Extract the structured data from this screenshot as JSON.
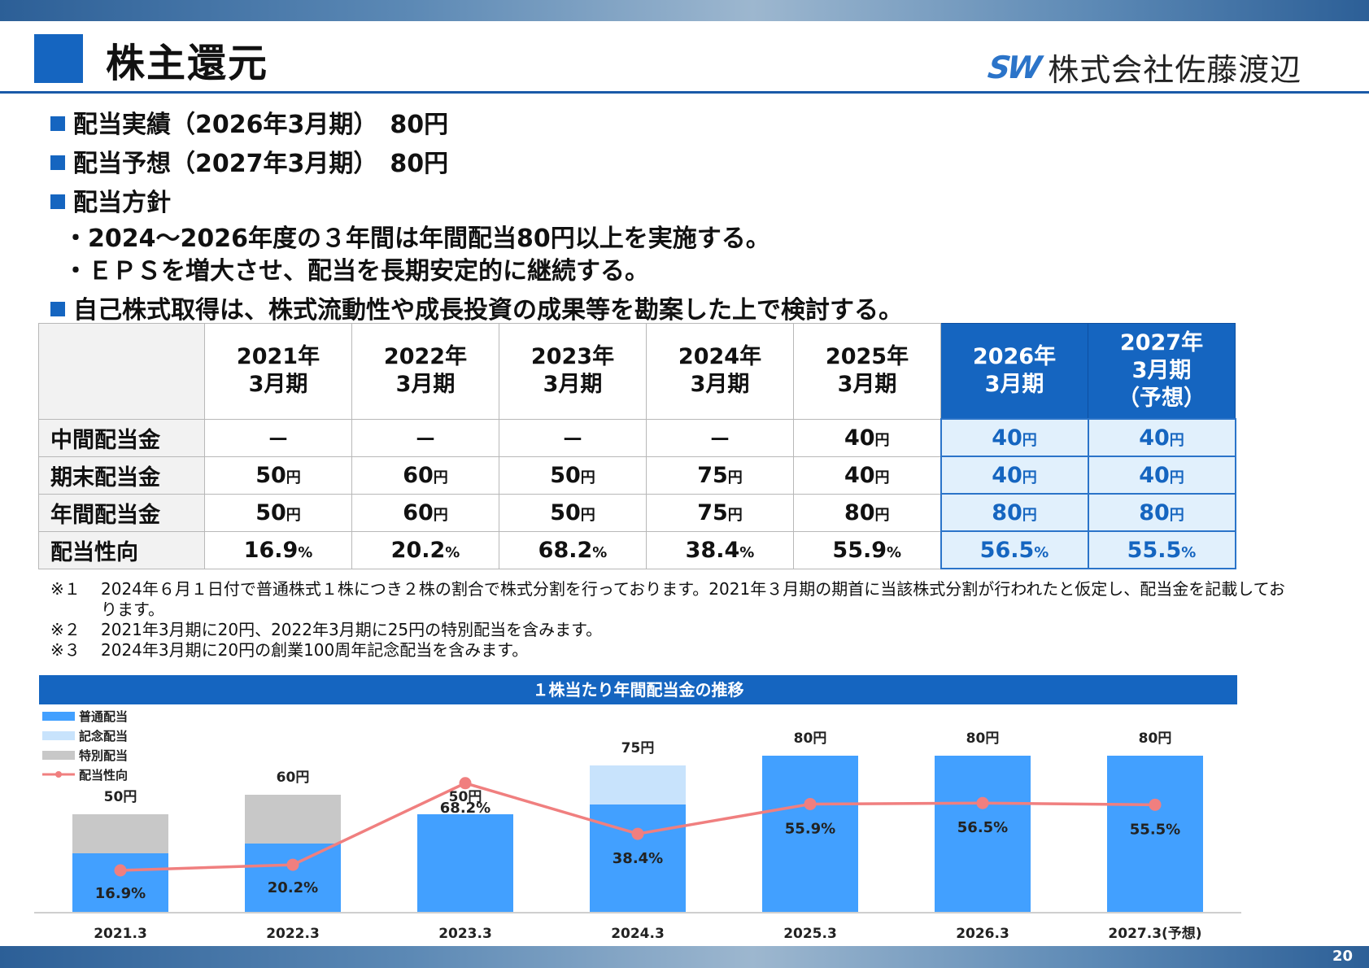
{
  "header": {
    "title": "株主還元",
    "company": "株式会社佐藤渡辺",
    "logo_mark": "SW"
  },
  "page_number": "20",
  "lines": [
    "配当実績（2026年3月期）　80円",
    "配当予想（2027年3月期）　80円",
    "配当方針",
    "・2024～2026年度の３年間は年間配当80円以上を実施する。",
    "・ＥＰＳを増大させ、配当を長期安定的に継続する。",
    "自己株式取得は、株式流動性や成長投資の成果等を勘案した上で検討する。"
  ],
  "table": {
    "columns": [
      [
        "2021年",
        "3月期"
      ],
      [
        "2022年",
        "3月期"
      ],
      [
        "2023年",
        "3月期"
      ],
      [
        "2024年",
        "3月期"
      ],
      [
        "2025年",
        "3月期"
      ],
      [
        "2026年",
        "3月期"
      ],
      [
        "2027年",
        "3月期",
        "（予想）"
      ]
    ],
    "rows": [
      {
        "label": "中間配当金",
        "cells": [
          [
            "－",
            ""
          ],
          [
            "－",
            ""
          ],
          [
            "－",
            ""
          ],
          [
            "－",
            ""
          ],
          [
            "40",
            "円"
          ],
          [
            "40",
            "円"
          ],
          [
            "40",
            "円"
          ]
        ]
      },
      {
        "label": "期末配当金",
        "cells": [
          [
            "50",
            "円"
          ],
          [
            "60",
            "円"
          ],
          [
            "50",
            "円"
          ],
          [
            "75",
            "円"
          ],
          [
            "40",
            "円"
          ],
          [
            "40",
            "円"
          ],
          [
            "40",
            "円"
          ]
        ]
      },
      {
        "label": "年間配当金",
        "cells": [
          [
            "50",
            "円"
          ],
          [
            "60",
            "円"
          ],
          [
            "50",
            "円"
          ],
          [
            "75",
            "円"
          ],
          [
            "80",
            "円"
          ],
          [
            "80",
            "円"
          ],
          [
            "80",
            "円"
          ]
        ]
      },
      {
        "label": "配当性向",
        "cells": [
          [
            "16.9",
            "%"
          ],
          [
            "20.2",
            "%"
          ],
          [
            "68.2",
            "%"
          ],
          [
            "38.4",
            "%"
          ],
          [
            "55.9",
            "%"
          ],
          [
            "56.5",
            "%"
          ],
          [
            "55.5",
            "%"
          ]
        ]
      }
    ]
  },
  "notes": [
    {
      "mark": "※１",
      "text": "2024年６月１日付で普通株式１株につき２株の割合で株式分割を行っております。2021年３月期の期首に当該株式分割が行われたと仮定し、配当金を記載しております。"
    },
    {
      "mark": "※２",
      "text": "2021年3月期に20円、2022年3月期に25円の特別配当を含みます。"
    },
    {
      "mark": "※３",
      "text": "2024年3月期に20円の創業100周年記念配当を含みます。"
    }
  ],
  "chart_data": {
    "type": "bar",
    "title": "１株当たり年間配当金の推移",
    "categories": [
      "2021.3",
      "2022.3",
      "2023.3",
      "2024.3",
      "2025.3",
      "2026.3",
      "2027.3(予想)"
    ],
    "series": [
      {
        "name": "普通配当",
        "values": [
          30,
          35,
          50,
          55,
          80,
          80,
          80
        ],
        "color": "#42a0ff"
      },
      {
        "name": "記念配当",
        "values": [
          0,
          0,
          0,
          20,
          0,
          0,
          0
        ],
        "color": "#c8e3fc"
      },
      {
        "name": "特別配当",
        "values": [
          20,
          25,
          0,
          0,
          0,
          0,
          0
        ],
        "color": "#c8c8c8"
      },
      {
        "name": "配当性向",
        "values": [
          16.9,
          20.2,
          68.2,
          38.4,
          55.9,
          56.5,
          55.5
        ],
        "color": "#f07f7f"
      }
    ],
    "total_labels": [
      "50円",
      "60円",
      "50円",
      "75円",
      "80円",
      "80円",
      "80円"
    ],
    "ratio_labels": [
      "16.9%",
      "20.2%",
      "68.2%",
      "38.4%",
      "55.9%",
      "56.5%",
      "55.5%"
    ],
    "legend_position": "top-left",
    "grid": false
  }
}
